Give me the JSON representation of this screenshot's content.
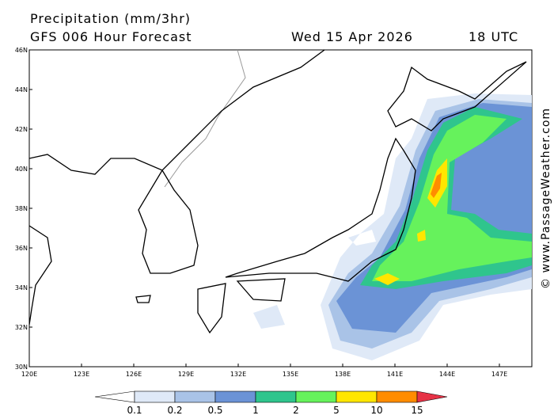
{
  "header": {
    "title": "Precipitation (mm/3hr)",
    "subtitle": "GFS 006 Hour Forecast",
    "date": "Wed 15 Apr 2026",
    "time": "18 UTC"
  },
  "map": {
    "lat_labels": [
      "46N",
      "44N",
      "42N",
      "40N",
      "38N",
      "36N",
      "34N",
      "32N",
      "30N"
    ],
    "lon_labels": [
      "120E",
      "123E",
      "126E",
      "129E",
      "132E",
      "135E",
      "138E",
      "141E",
      "144E",
      "147E"
    ]
  },
  "legend": {
    "labels": [
      "0.1",
      "0.2",
      "0.5",
      "1",
      "2",
      "5",
      "10",
      "15"
    ],
    "colors": [
      "#ffffff",
      "#dfe9f7",
      "#a9c3e7",
      "#6b93d6",
      "#2fc58d",
      "#66f25c",
      "#ffe600",
      "#ff8c00",
      "#e63246"
    ]
  },
  "credit": "© www.PassageWeather.com"
}
